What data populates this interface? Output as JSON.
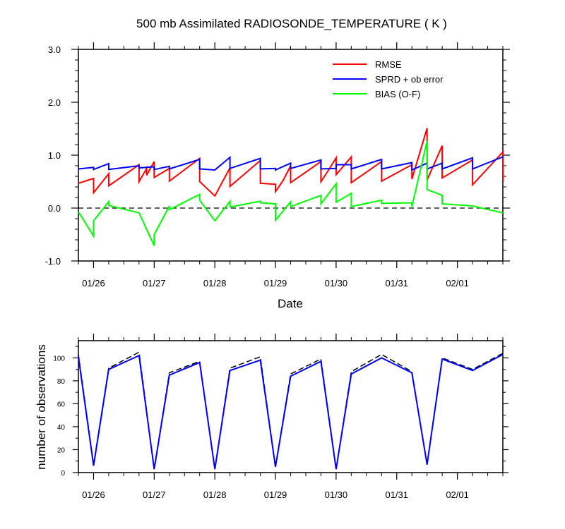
{
  "chart_data": [
    {
      "type": "line",
      "title": "500 mb Assimilated RADIOSONDE_TEMPERATURE ( K )",
      "xlabel": "Date",
      "ylabel": "",
      "x_tick_labels": [
        "01/26",
        "01/27",
        "01/28",
        "01/29",
        "01/30",
        "01/31",
        "02/01"
      ],
      "y_tick_labels": [
        "-1.0",
        "0.0",
        "1.0",
        "2.0",
        "3.0"
      ],
      "ylim": [
        -1.0,
        3.0
      ],
      "xlim": [
        0.75,
        7.75
      ],
      "zero_line": "dashed",
      "legend_position": "top-right",
      "series": [
        {
          "name": "RMSE",
          "color": "#ff0000",
          "points": [
            [
              0.75,
              0.47
            ],
            [
              1.0,
              0.56
            ],
            [
              1.0,
              0.29
            ],
            [
              1.25,
              0.65
            ],
            [
              1.25,
              0.42
            ],
            [
              1.75,
              0.82
            ],
            [
              1.75,
              0.5
            ],
            [
              1.875,
              0.75
            ],
            [
              1.875,
              0.62
            ],
            [
              2.0,
              0.88
            ],
            [
              2.0,
              0.58
            ],
            [
              2.25,
              0.75
            ],
            [
              2.25,
              0.51
            ],
            [
              2.75,
              0.94
            ],
            [
              2.75,
              0.5
            ],
            [
              3.0,
              0.23
            ],
            [
              3.25,
              0.76
            ],
            [
              3.25,
              0.41
            ],
            [
              3.75,
              0.9
            ],
            [
              3.75,
              0.47
            ],
            [
              4.0,
              0.45
            ],
            [
              4.0,
              0.31
            ],
            [
              4.125,
              0.52
            ],
            [
              4.25,
              0.8
            ],
            [
              4.25,
              0.48
            ],
            [
              4.75,
              0.88
            ],
            [
              4.75,
              0.5
            ],
            [
              4.875,
              0.72
            ],
            [
              5.0,
              0.95
            ],
            [
              5.0,
              0.63
            ],
            [
              5.25,
              0.97
            ],
            [
              5.25,
              0.48
            ],
            [
              5.75,
              0.88
            ],
            [
              5.75,
              0.51
            ],
            [
              6.25,
              0.82
            ],
            [
              6.25,
              0.55
            ],
            [
              6.5,
              1.51
            ],
            [
              6.5,
              0.53
            ],
            [
              6.75,
              1.18
            ],
            [
              6.75,
              0.57
            ],
            [
              7.25,
              0.91
            ],
            [
              7.25,
              0.44
            ],
            [
              7.75,
              1.06
            ],
            [
              7.75,
              0.5
            ]
          ]
        },
        {
          "name": "SPRD + ob error",
          "color": "#0000ff",
          "points": [
            [
              0.75,
              0.74
            ],
            [
              1.0,
              0.77
            ],
            [
              1.0,
              0.73
            ],
            [
              1.25,
              0.84
            ],
            [
              1.25,
              0.73
            ],
            [
              1.75,
              0.8
            ],
            [
              1.75,
              0.76
            ],
            [
              2.0,
              0.78
            ],
            [
              2.0,
              0.73
            ],
            [
              2.25,
              0.79
            ],
            [
              2.25,
              0.74
            ],
            [
              2.75,
              0.92
            ],
            [
              2.75,
              0.74
            ],
            [
              3.0,
              0.72
            ],
            [
              3.25,
              0.96
            ],
            [
              3.25,
              0.75
            ],
            [
              3.75,
              0.94
            ],
            [
              3.75,
              0.74
            ],
            [
              4.0,
              0.75
            ],
            [
              4.0,
              0.72
            ],
            [
              4.25,
              0.85
            ],
            [
              4.25,
              0.75
            ],
            [
              4.75,
              0.91
            ],
            [
              4.75,
              0.74
            ],
            [
              5.0,
              0.75
            ],
            [
              5.0,
              0.82
            ],
            [
              5.25,
              0.82
            ],
            [
              5.25,
              0.74
            ],
            [
              5.75,
              0.92
            ],
            [
              5.75,
              0.74
            ],
            [
              6.25,
              0.86
            ],
            [
              6.25,
              0.72
            ],
            [
              6.5,
              0.85
            ],
            [
              6.5,
              0.74
            ],
            [
              6.75,
              0.85
            ],
            [
              6.75,
              0.74
            ],
            [
              7.25,
              0.95
            ],
            [
              7.25,
              0.74
            ],
            [
              7.75,
              0.97
            ],
            [
              7.75,
              0.96
            ]
          ]
        },
        {
          "name": "BIAS (O-F)",
          "color": "#00ff00",
          "points": [
            [
              0.75,
              -0.07
            ],
            [
              1.0,
              -0.53
            ],
            [
              1.0,
              -0.24
            ],
            [
              1.25,
              0.12
            ],
            [
              1.25,
              0.05
            ],
            [
              1.75,
              -0.09
            ],
            [
              2.0,
              -0.71
            ],
            [
              2.0,
              -0.5
            ],
            [
              2.25,
              0.04
            ],
            [
              2.25,
              -0.03
            ],
            [
              2.75,
              0.26
            ],
            [
              2.75,
              0.15
            ],
            [
              3.0,
              -0.24
            ],
            [
              3.25,
              0.13
            ],
            [
              3.25,
              0.02
            ],
            [
              3.75,
              0.13
            ],
            [
              3.75,
              0.1
            ],
            [
              4.0,
              0.08
            ],
            [
              4.0,
              -0.23
            ],
            [
              4.25,
              0.12
            ],
            [
              4.25,
              0.03
            ],
            [
              4.75,
              0.24
            ],
            [
              4.75,
              0.08
            ],
            [
              5.0,
              0.46
            ],
            [
              5.0,
              0.11
            ],
            [
              5.25,
              0.28
            ],
            [
              5.25,
              0.03
            ],
            [
              5.75,
              0.15
            ],
            [
              5.75,
              0.09
            ],
            [
              6.25,
              0.1
            ],
            [
              6.25,
              0.03
            ],
            [
              6.5,
              1.27
            ],
            [
              6.5,
              0.35
            ],
            [
              6.75,
              0.24
            ],
            [
              6.75,
              0.08
            ],
            [
              7.25,
              0.04
            ],
            [
              7.75,
              -0.09
            ]
          ]
        }
      ]
    },
    {
      "type": "line",
      "title": "",
      "xlabel": "",
      "ylabel": "number of observations",
      "x_tick_labels": [
        "01/26",
        "01/27",
        "01/28",
        "01/29",
        "01/30",
        "01/31",
        "02/01"
      ],
      "y_tick_labels": [
        "0",
        "20",
        "40",
        "60",
        "80",
        "100"
      ],
      "ylim": [
        0,
        115
      ],
      "xlim": [
        0.75,
        7.75
      ],
      "series": [
        {
          "color": "#000000",
          "style": "dashed",
          "points": [
            [
              0.75,
              103
            ],
            [
              1.0,
              7
            ],
            [
              1.25,
              91
            ],
            [
              1.75,
              105
            ],
            [
              2.0,
              3
            ],
            [
              2.25,
              87
            ],
            [
              2.75,
              97
            ],
            [
              3.0,
              3
            ],
            [
              3.25,
              91
            ],
            [
              3.75,
              101
            ],
            [
              4.0,
              5
            ],
            [
              4.25,
              86
            ],
            [
              4.75,
              99
            ],
            [
              5.0,
              3
            ],
            [
              5.25,
              88
            ],
            [
              5.75,
              103
            ],
            [
              6.25,
              88
            ],
            [
              6.5,
              7
            ],
            [
              6.75,
              100
            ],
            [
              7.25,
              90
            ],
            [
              7.75,
              104
            ]
          ]
        },
        {
          "color": "#0000ff",
          "style": "solid",
          "points": [
            [
              0.75,
              101
            ],
            [
              1.0,
              6
            ],
            [
              1.25,
              90
            ],
            [
              1.75,
              102
            ],
            [
              2.0,
              3
            ],
            [
              2.25,
              85
            ],
            [
              2.75,
              96
            ],
            [
              3.0,
              3
            ],
            [
              3.25,
              89
            ],
            [
              3.75,
              98
            ],
            [
              4.0,
              5
            ],
            [
              4.25,
              84
            ],
            [
              4.75,
              97
            ],
            [
              5.0,
              3
            ],
            [
              5.25,
              86
            ],
            [
              5.75,
              100
            ],
            [
              6.25,
              87
            ],
            [
              6.5,
              7
            ],
            [
              6.75,
              99
            ],
            [
              7.25,
              89
            ],
            [
              7.75,
              103
            ]
          ]
        }
      ]
    }
  ]
}
